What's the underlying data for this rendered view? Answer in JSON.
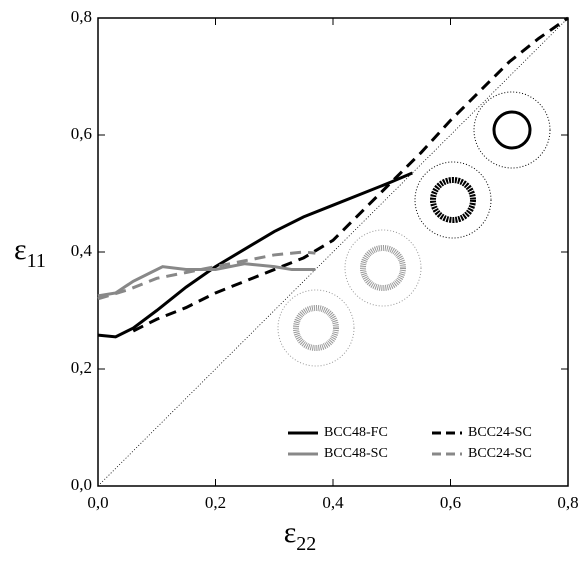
{
  "chart_data": {
    "type": "line",
    "xlabel": {
      "text": "ε",
      "sub": "22"
    },
    "ylabel": {
      "text": "ε",
      "sub": "11"
    },
    "xlim": [
      0,
      0.8
    ],
    "ylim": [
      0,
      0.8
    ],
    "xticks": [
      {
        "value": 0,
        "label": "0,0"
      },
      {
        "value": 0.2,
        "label": "0,2"
      },
      {
        "value": 0.4,
        "label": "0,4"
      },
      {
        "value": 0.6,
        "label": "0,6"
      },
      {
        "value": 0.8,
        "label": "0,8"
      }
    ],
    "yticks": [
      {
        "value": 0,
        "label": "0,0"
      },
      {
        "value": 0.2,
        "label": "0,2"
      },
      {
        "value": 0.4,
        "label": "0,4"
      },
      {
        "value": 0.6,
        "label": "0,6"
      },
      {
        "value": 0.8,
        "label": "0,8"
      }
    ],
    "diagonal": true,
    "legend": "lower right",
    "series": [
      {
        "name": "BCC48-FC",
        "color": "#000000",
        "dash": false,
        "x": [
          0,
          0.03,
          0.06,
          0.1,
          0.15,
          0.2,
          0.25,
          0.3,
          0.35,
          0.4,
          0.45,
          0.5,
          0.535
        ],
        "values": [
          0.258,
          0.255,
          0.27,
          0.3,
          0.34,
          0.375,
          0.405,
          0.435,
          0.46,
          0.48,
          0.5,
          0.52,
          0.535
        ]
      },
      {
        "name": "BCC24-SC",
        "color": "#000000",
        "dash": true,
        "x": [
          0.06,
          0.1,
          0.15,
          0.2,
          0.25,
          0.3,
          0.35,
          0.4,
          0.45,
          0.5,
          0.55,
          0.6,
          0.65,
          0.7,
          0.75,
          0.8
        ],
        "values": [
          0.265,
          0.285,
          0.305,
          0.33,
          0.35,
          0.37,
          0.39,
          0.42,
          0.47,
          0.52,
          0.57,
          0.625,
          0.675,
          0.725,
          0.765,
          0.8
        ]
      },
      {
        "name": "BCC48-SC",
        "color": "#888888",
        "dash": false,
        "x": [
          0,
          0.03,
          0.06,
          0.09,
          0.11,
          0.15,
          0.2,
          0.25,
          0.3,
          0.33,
          0.37
        ],
        "values": [
          0.325,
          0.33,
          0.35,
          0.365,
          0.375,
          0.37,
          0.37,
          0.38,
          0.375,
          0.37,
          0.37
        ]
      },
      {
        "name": "BCC24-SC",
        "color": "#888888",
        "dash": true,
        "x": [
          0,
          0.05,
          0.1,
          0.15,
          0.2,
          0.25,
          0.3,
          0.35,
          0.37
        ],
        "values": [
          0.32,
          0.335,
          0.355,
          0.365,
          0.375,
          0.385,
          0.395,
          0.4,
          0.398
        ]
      }
    ]
  }
}
